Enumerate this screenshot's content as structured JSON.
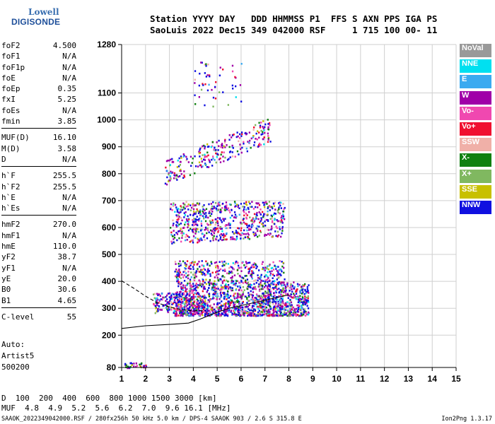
{
  "logo": {
    "line1": "Lowell",
    "line2": "DIGISONDE"
  },
  "header": {
    "labels": "Station YYYY DAY   DDD HHMMSS P1  FFS S AXN PPS IGA PS",
    "values": "SaoLuis 2022 Dec15 349 042000 RSF     1 715 100 00- 11"
  },
  "params": {
    "group1": [
      {
        "k": "foF2",
        "v": "4.500"
      },
      {
        "k": "foF1",
        "v": "N/A"
      },
      {
        "k": "foF1p",
        "v": "N/A"
      },
      {
        "k": "foE",
        "v": "N/A"
      },
      {
        "k": "foEp",
        "v": "0.35"
      },
      {
        "k": "fxI",
        "v": "5.25"
      },
      {
        "k": "foEs",
        "v": "N/A"
      },
      {
        "k": "fmin",
        "v": "3.85"
      }
    ],
    "group2": [
      {
        "k": "MUF(D)",
        "v": "16.10"
      },
      {
        "k": "M(D)",
        "v": "3.58"
      },
      {
        "k": "D",
        "v": "N/A"
      }
    ],
    "group3": [
      {
        "k": "h`F",
        "v": "255.5"
      },
      {
        "k": "h`F2",
        "v": "255.5"
      },
      {
        "k": "h`E",
        "v": "N/A"
      },
      {
        "k": "h`Es",
        "v": "N/A"
      }
    ],
    "group4": [
      {
        "k": "hmF2",
        "v": "270.0"
      },
      {
        "k": "hmF1",
        "v": "N/A"
      },
      {
        "k": "hmE",
        "v": "110.0"
      },
      {
        "k": "yF2",
        "v": "38.7"
      },
      {
        "k": "yF1",
        "v": "N/A"
      },
      {
        "k": "yE",
        "v": "20.0"
      },
      {
        "k": "B0",
        "v": "30.6"
      },
      {
        "k": "B1",
        "v": "4.65"
      }
    ],
    "group5": [
      {
        "k": "C-level",
        "v": "55"
      }
    ]
  },
  "auto": {
    "line1": "Auto:",
    "line2": "Artist5",
    "line3": "500200"
  },
  "legend": [
    {
      "label": "NoVal",
      "color": "#999999"
    },
    {
      "label": "NNE",
      "color": "#00e0f0"
    },
    {
      "label": "E",
      "color": "#3aaaf0"
    },
    {
      "label": "W",
      "color": "#a000a8"
    },
    {
      "label": "Vo-",
      "color": "#f048b0"
    },
    {
      "label": "Vo+",
      "color": "#f01030"
    },
    {
      "label": "SSW",
      "color": "#f0b0a8"
    },
    {
      "label": "X-",
      "color": "#108010"
    },
    {
      "label": "X+",
      "color": "#80b860"
    },
    {
      "label": "SSE",
      "color": "#c8c000"
    },
    {
      "label": "NNW",
      "color": "#1010e0"
    }
  ],
  "footer": {
    "dist_label": "D",
    "dist_values": "  100  200  400  600  800 1000 1500 3000 [km]",
    "muf_label": "MUF",
    "muf_values": "  4.8  4.9  5.2  5.6  6.2  7.0  9.6 16.1 [MHz]",
    "left": "SAAOK_2022349042000.RSF / 280fx256h 50 kHz 5.0 km / DPS-4 SAAOK 903 / 2.6 S 315.8 E",
    "right": "Ion2Png 1.3.17"
  },
  "chart_data": {
    "type": "scatter",
    "xlim": [
      1,
      15
    ],
    "ylim": [
      80,
      1280
    ],
    "x_ticks": [
      1,
      2,
      3,
      4,
      5,
      6,
      7,
      8,
      9,
      10,
      11,
      12,
      13,
      14,
      15
    ],
    "y_ticks": [
      80,
      200,
      300,
      400,
      500,
      600,
      700,
      800,
      900,
      1000,
      1100,
      1280
    ],
    "grid": true,
    "traces": [
      {
        "name": "profile",
        "points": [
          [
            1,
            225
          ],
          [
            2,
            235
          ],
          [
            3,
            240
          ],
          [
            3.8,
            245
          ],
          [
            4.3,
            260
          ],
          [
            5,
            285
          ],
          [
            5.5,
            300
          ],
          [
            6,
            310
          ],
          [
            6.5,
            320
          ],
          [
            7,
            330
          ],
          [
            7.5,
            340
          ],
          [
            8,
            350
          ]
        ]
      },
      {
        "name": "fit",
        "points": [
          [
            1,
            402
          ],
          [
            1.5,
            375
          ],
          [
            2,
            345
          ],
          [
            2.5,
            320
          ],
          [
            3,
            305
          ],
          [
            3.5,
            295
          ],
          [
            4,
            290
          ],
          [
            4.5,
            292
          ]
        ]
      }
    ],
    "clusters": [
      {
        "x": [
          3.2,
          8.8
        ],
        "y": [
          275,
          400
        ],
        "n": 1400
      },
      {
        "x": [
          3.2,
          7.8
        ],
        "y": [
          400,
          480
        ],
        "n": 350
      },
      {
        "x": [
          2.3,
          4.5
        ],
        "y": [
          285,
          360
        ],
        "n": 220
      },
      {
        "x": [
          3.0,
          7.8
        ],
        "y": [
          540,
          700
        ],
        "n": 650
      },
      {
        "x": [
          2.8,
          7.2
        ],
        "y": [
          760,
          1000
        ],
        "n": 260
      },
      {
        "x": [
          4.0,
          6.0
        ],
        "y": [
          1050,
          1230
        ],
        "n": 50
      },
      {
        "x": [
          1.1,
          2.0
        ],
        "y": [
          80,
          100
        ],
        "n": 35
      }
    ]
  }
}
